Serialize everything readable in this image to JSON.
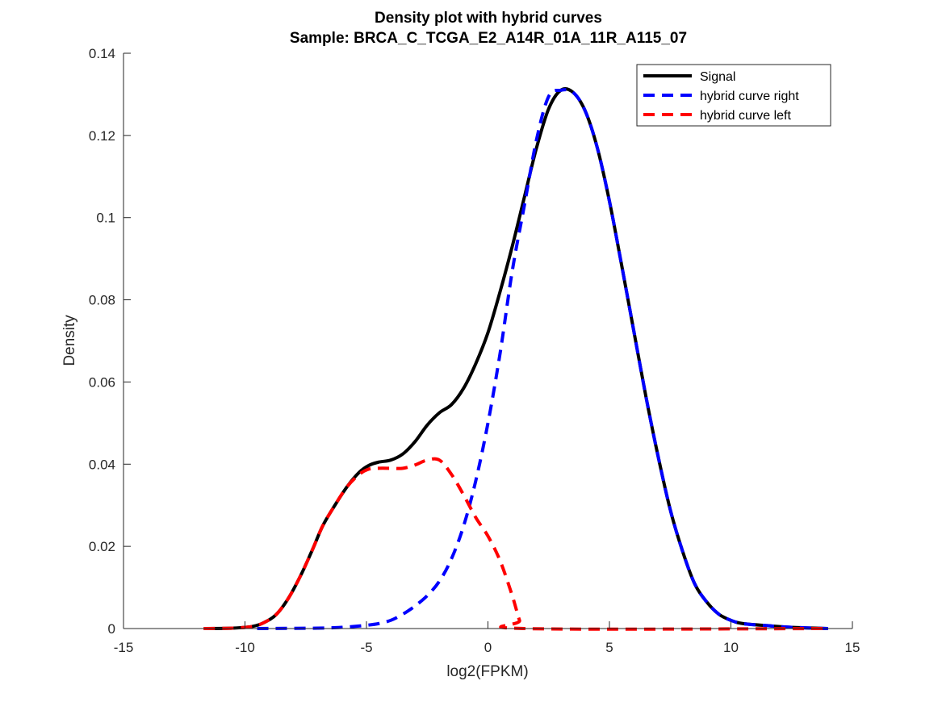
{
  "chart_data": {
    "type": "line",
    "title": "Density plot with hybrid curves",
    "subtitle": "Sample: BRCA_C_TCGA_E2_A14R_01A_11R_A115_07",
    "xlabel": "log2(FPKM)",
    "ylabel": "Density",
    "xlim": [
      -15,
      15
    ],
    "ylim": [
      0,
      0.14
    ],
    "xticks": [
      -15,
      -10,
      -5,
      0,
      5,
      10,
      15
    ],
    "yticks": [
      0,
      0.02,
      0.04,
      0.06,
      0.08,
      0.1,
      0.12,
      0.14
    ],
    "xtick_labels": [
      "-15",
      "-10",
      "-5",
      "0",
      "5",
      "10",
      "15"
    ],
    "ytick_labels": [
      "0",
      "0.02",
      "0.04",
      "0.06",
      "0.08",
      "0.1",
      "0.12",
      "0.14"
    ],
    "grid": false,
    "legend_position": "top-right",
    "series": [
      {
        "name": "Signal",
        "color": "#000000",
        "style": "solid",
        "points": [
          [
            -11.7,
            0
          ],
          [
            -10.5,
            0.0001
          ],
          [
            -9.7,
            0.0005
          ],
          [
            -9.2,
            0.0015
          ],
          [
            -8.7,
            0.0035
          ],
          [
            -8.2,
            0.0075
          ],
          [
            -7.7,
            0.013
          ],
          [
            -7.2,
            0.0195
          ],
          [
            -6.8,
            0.025
          ],
          [
            -6.3,
            0.03
          ],
          [
            -5.8,
            0.0345
          ],
          [
            -5.3,
            0.038
          ],
          [
            -4.9,
            0.0397
          ],
          [
            -4.5,
            0.0405
          ],
          [
            -4.0,
            0.041
          ],
          [
            -3.5,
            0.0425
          ],
          [
            -3.0,
            0.0455
          ],
          [
            -2.5,
            0.0495
          ],
          [
            -2.0,
            0.0525
          ],
          [
            -1.5,
            0.0545
          ],
          [
            -1.0,
            0.0585
          ],
          [
            -0.5,
            0.0645
          ],
          [
            0.0,
            0.072
          ],
          [
            0.5,
            0.082
          ],
          [
            1.0,
            0.093
          ],
          [
            1.5,
            0.105
          ],
          [
            2.0,
            0.117
          ],
          [
            2.5,
            0.1265
          ],
          [
            3.0,
            0.131
          ],
          [
            3.5,
            0.1305
          ],
          [
            4.0,
            0.126
          ],
          [
            4.5,
            0.117
          ],
          [
            5.0,
            0.104
          ],
          [
            5.5,
            0.0885
          ],
          [
            6.0,
            0.0725
          ],
          [
            6.5,
            0.0565
          ],
          [
            7.0,
            0.042
          ],
          [
            7.5,
            0.029
          ],
          [
            8.0,
            0.019
          ],
          [
            8.5,
            0.011
          ],
          [
            9.0,
            0.0065
          ],
          [
            9.5,
            0.0035
          ],
          [
            10.0,
            0.002
          ],
          [
            10.5,
            0.0012
          ],
          [
            11.5,
            0.0007
          ],
          [
            12.5,
            0.0003
          ],
          [
            14.0,
            0
          ]
        ]
      },
      {
        "name": "hybrid curve right",
        "color": "#0000ff",
        "style": "dashed",
        "points": [
          [
            -9.5,
            0
          ],
          [
            -7.0,
            0.0001
          ],
          [
            -6.0,
            0.0003
          ],
          [
            -5.0,
            0.0008
          ],
          [
            -4.5,
            0.0012
          ],
          [
            -4.0,
            0.002
          ],
          [
            -3.5,
            0.0035
          ],
          [
            -3.0,
            0.0055
          ],
          [
            -2.5,
            0.008
          ],
          [
            -2.0,
            0.0115
          ],
          [
            -1.5,
            0.017
          ],
          [
            -1.0,
            0.025
          ],
          [
            -0.5,
            0.036
          ],
          [
            0.0,
            0.05
          ],
          [
            0.5,
            0.067
          ],
          [
            1.0,
            0.087
          ],
          [
            1.5,
            0.103
          ],
          [
            2.0,
            0.119
          ],
          [
            2.5,
            0.1295
          ],
          [
            3.0,
            0.131
          ],
          [
            3.5,
            0.1305
          ],
          [
            4.0,
            0.126
          ],
          [
            4.5,
            0.117
          ],
          [
            5.0,
            0.104
          ],
          [
            5.5,
            0.0885
          ],
          [
            6.0,
            0.0725
          ],
          [
            6.5,
            0.0565
          ],
          [
            7.0,
            0.042
          ],
          [
            7.5,
            0.029
          ],
          [
            8.0,
            0.019
          ],
          [
            8.5,
            0.011
          ],
          [
            9.0,
            0.0065
          ],
          [
            9.5,
            0.0035
          ],
          [
            10.0,
            0.002
          ],
          [
            10.5,
            0.0012
          ],
          [
            11.5,
            0.0007
          ],
          [
            12.5,
            0.0003
          ],
          [
            14.0,
            0
          ]
        ]
      },
      {
        "name": "hybrid curve left",
        "color": "#ff0000",
        "style": "dashed",
        "points": [
          [
            -11.7,
            0
          ],
          [
            -10.5,
            0.0001
          ],
          [
            -9.7,
            0.0005
          ],
          [
            -9.2,
            0.0015
          ],
          [
            -8.7,
            0.0035
          ],
          [
            -8.2,
            0.0075
          ],
          [
            -7.7,
            0.013
          ],
          [
            -7.2,
            0.0195
          ],
          [
            -6.8,
            0.025
          ],
          [
            -6.3,
            0.03
          ],
          [
            -5.8,
            0.0345
          ],
          [
            -5.3,
            0.0375
          ],
          [
            -4.9,
            0.0388
          ],
          [
            -4.5,
            0.039
          ],
          [
            -4.0,
            0.039
          ],
          [
            -3.5,
            0.039
          ],
          [
            -3.0,
            0.0398
          ],
          [
            -2.5,
            0.041
          ],
          [
            -2.0,
            0.041
          ],
          [
            -1.5,
            0.0375
          ],
          [
            -1.0,
            0.0325
          ],
          [
            -0.5,
            0.027
          ],
          [
            0.0,
            0.0225
          ],
          [
            0.5,
            0.0165
          ],
          [
            1.0,
            0.008
          ],
          [
            1.3,
            0.002
          ],
          [
            1.5,
            0
          ],
          [
            14.0,
            0
          ]
        ]
      }
    ]
  }
}
